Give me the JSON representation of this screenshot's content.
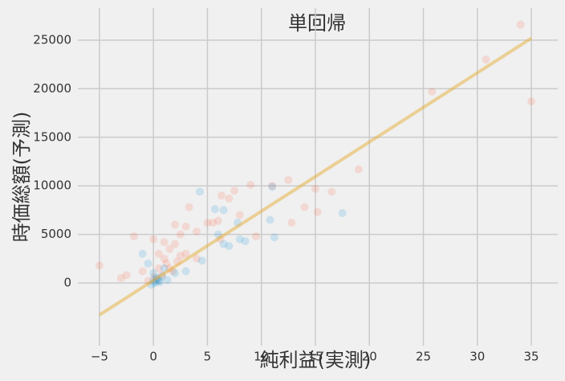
{
  "chart_data": {
    "type": "scatter",
    "title": "単回帰",
    "x_label": "純利益(実測)",
    "y_label": "時価総額(予測)",
    "xlim": [
      -7,
      37.45
    ],
    "ylim": [
      -6457,
      28311
    ],
    "xticks": [
      {
        "value": -5,
        "label": "−5"
      },
      0,
      5,
      10,
      15,
      20,
      25,
      30,
      35
    ],
    "yticks": [
      0,
      5000,
      10000,
      15000,
      20000,
      25000
    ],
    "grid": true,
    "series": [
      {
        "mode": "markers",
        "color": "#fc4f30",
        "opacity": 0.15,
        "x": [
          -5,
          -3,
          -2.5,
          -1.8,
          -1,
          0,
          0.5,
          1,
          1,
          1.5,
          2,
          2,
          2.5,
          3,
          3.3,
          4,
          5,
          5.5,
          6,
          6.3,
          7,
          7.5,
          8,
          9,
          9.5,
          11,
          12.5,
          12.8,
          14,
          15,
          15.2,
          16.5,
          19,
          25.8,
          30.8,
          34,
          35,
          1.5,
          0.8,
          2.2,
          3,
          4,
          0.3,
          -0.5,
          6.2,
          0.5,
          1.2,
          1.8,
          0.1,
          2.5
        ],
        "values": [
          1800,
          500,
          800,
          4800,
          1200,
          4500,
          3000,
          4200,
          2500,
          3500,
          6000,
          4000,
          5000,
          5800,
          7800,
          5300,
          6200,
          6200,
          6400,
          9000,
          8700,
          9500,
          7000,
          10100,
          4800,
          10000,
          10600,
          6200,
          7800,
          9700,
          7300,
          9400,
          11700,
          19700,
          23000,
          26600,
          18700,
          1500,
          800,
          2200,
          3000,
          2500,
          300,
          200,
          4500,
          1500,
          2000,
          1200,
          600,
          2800
        ]
      },
      {
        "mode": "markers",
        "color": "#30a2da",
        "opacity": 0.2,
        "x": [
          -1,
          -0.5,
          0,
          0.3,
          0.5,
          1,
          2,
          3,
          4.3,
          4.5,
          5.7,
          6.5,
          6,
          6.5,
          7,
          7.8,
          8,
          8.5,
          10.8,
          11,
          11.2,
          17.5,
          0.2,
          -0.2,
          0.8,
          1.3,
          0.1,
          0.4,
          0.6,
          0
        ],
        "values": [
          3000,
          2000,
          1000,
          500,
          200,
          1500,
          1000,
          1200,
          9400,
          2300,
          7600,
          7500,
          5000,
          4000,
          3800,
          6200,
          4500,
          4300,
          6500,
          9900,
          4700,
          7200,
          100,
          -200,
          700,
          300,
          0,
          400,
          100,
          300
        ]
      },
      {
        "mode": "line",
        "color": "#e5ae38",
        "opacity": 0.5,
        "x": [
          -5,
          35
        ],
        "values": [
          -3300,
          25200
        ]
      }
    ]
  }
}
